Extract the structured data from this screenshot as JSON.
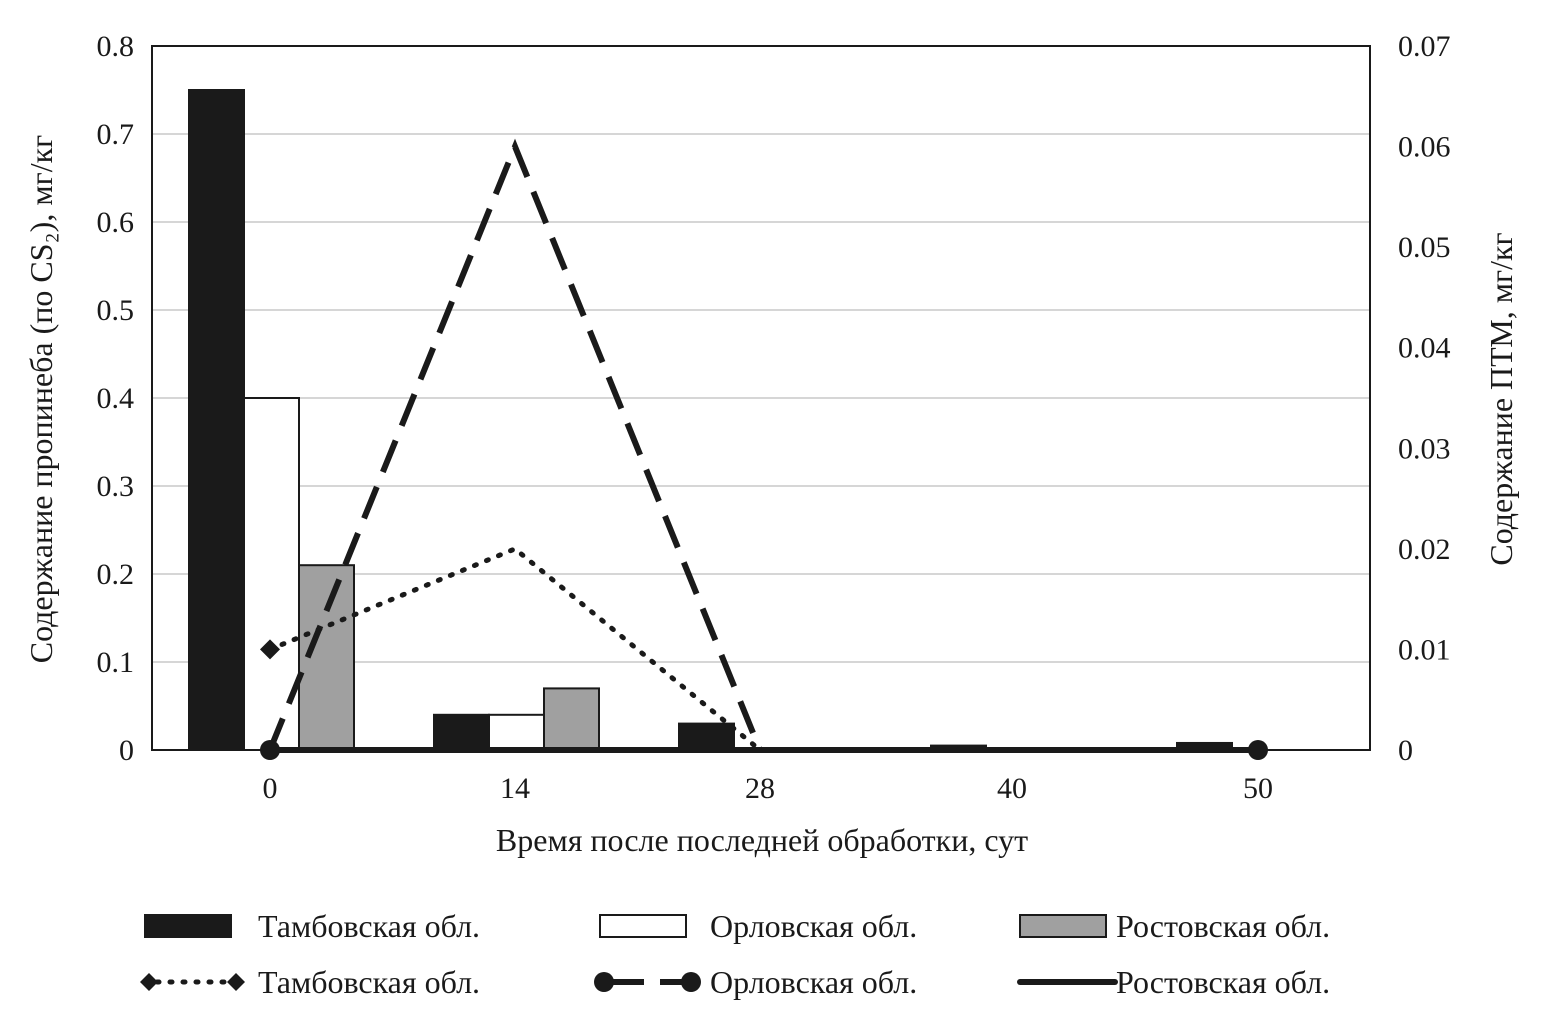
{
  "chart_data": {
    "type": "bar",
    "categories": [
      "0",
      "14",
      "28",
      "40",
      "50"
    ],
    "xlabel": "Время после последней обработки, сут",
    "ylabel": "Содержание пропинеба (по CS₂), мг/кг",
    "y2label": "Содержание ПТМ, мг/кг",
    "ylim": [
      0,
      0.8
    ],
    "y2lim": [
      0,
      0.07
    ],
    "yticks": [
      "0",
      "0.1",
      "0.2",
      "0.3",
      "0.4",
      "0.5",
      "0.6",
      "0.7",
      "0.8"
    ],
    "y2ticks": [
      "0",
      "0.01",
      "0.02",
      "0.03",
      "0.04",
      "0.05",
      "0.06",
      "0.07"
    ],
    "grid": true,
    "bar_series": [
      {
        "name": "Тамбовская обл.",
        "values": [
          0.75,
          0.04,
          0.03,
          0.005,
          0.008
        ],
        "color": "#1a1a1a"
      },
      {
        "name": "Орловская обл.",
        "values": [
          0.4,
          0.04,
          0.0,
          0.0,
          0.0
        ],
        "color": "#ffffff"
      },
      {
        "name": "Ростовская обл.",
        "values": [
          0.21,
          0.07,
          0.0,
          0.0,
          0.0
        ],
        "color": "#a0a0a0"
      }
    ],
    "line_series": [
      {
        "name": "Тамбовская обл.",
        "style": "dotted",
        "marker": "diamond",
        "values": [
          0.01,
          0.02,
          0.0,
          0.0,
          0.0
        ]
      },
      {
        "name": "Орловская обл.",
        "style": "dashed",
        "marker": "circle",
        "values": [
          0.0,
          0.06,
          0.0,
          0.0,
          0.0
        ]
      },
      {
        "name": "Ростовская обл.",
        "style": "solid",
        "marker": "none",
        "values": [
          0.0,
          0.0,
          0.0,
          0.0,
          0.0
        ]
      }
    ],
    "legend_position": "bottom"
  }
}
